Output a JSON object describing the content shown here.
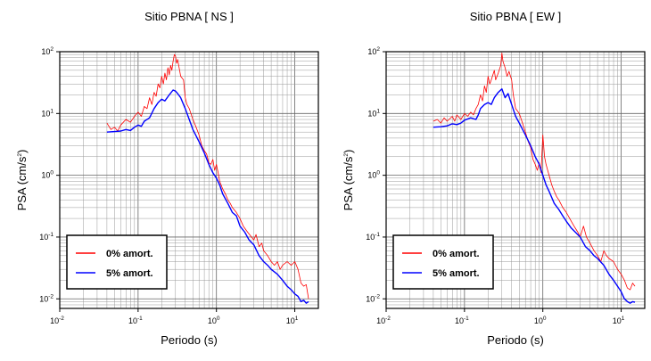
{
  "chart_data": [
    {
      "type": "line",
      "title": "Sitio PBNA [ NS ]",
      "xlabel": "Periodo (s)",
      "ylabel": "PSA (cm/s",
      "ylabel_sup": "2",
      "ylabel_end": ")",
      "xscale": "log",
      "yscale": "log",
      "xlim": [
        0.01,
        20
      ],
      "ylim": [
        0.007,
        100
      ],
      "grid": true,
      "legend_position": "bottom-left",
      "x_ticks": [
        {
          "base": "10",
          "exp": "-2"
        },
        {
          "base": "10",
          "exp": "-1"
        },
        {
          "base": "10",
          "exp": "0"
        },
        {
          "base": "10",
          "exp": "1"
        }
      ],
      "y_ticks": [
        {
          "base": "10",
          "exp": "2"
        },
        {
          "base": "10",
          "exp": "1"
        },
        {
          "base": "10",
          "exp": "0"
        },
        {
          "base": "10",
          "exp": "-1"
        },
        {
          "base": "10",
          "exp": "-2"
        }
      ],
      "series": [
        {
          "name": "0% amort.",
          "color": "#ff0000",
          "points": [
            [
              0.04,
              7
            ],
            [
              0.045,
              5.5
            ],
            [
              0.05,
              6
            ],
            [
              0.055,
              5.2
            ],
            [
              0.06,
              6.5
            ],
            [
              0.07,
              8
            ],
            [
              0.08,
              7.2
            ],
            [
              0.09,
              9
            ],
            [
              0.1,
              10.5
            ],
            [
              0.11,
              9
            ],
            [
              0.12,
              13
            ],
            [
              0.13,
              12
            ],
            [
              0.14,
              18
            ],
            [
              0.15,
              14
            ],
            [
              0.16,
              22
            ],
            [
              0.17,
              19
            ],
            [
              0.18,
              30
            ],
            [
              0.19,
              26
            ],
            [
              0.2,
              40
            ],
            [
              0.21,
              30
            ],
            [
              0.22,
              45
            ],
            [
              0.23,
              35
            ],
            [
              0.24,
              55
            ],
            [
              0.25,
              42
            ],
            [
              0.26,
              60
            ],
            [
              0.27,
              50
            ],
            [
              0.28,
              70
            ],
            [
              0.29,
              90
            ],
            [
              0.3,
              85
            ],
            [
              0.31,
              65
            ],
            [
              0.32,
              75
            ],
            [
              0.33,
              60
            ],
            [
              0.35,
              40
            ],
            [
              0.38,
              35
            ],
            [
              0.4,
              18
            ],
            [
              0.42,
              14
            ],
            [
              0.45,
              12
            ],
            [
              0.5,
              8
            ],
            [
              0.55,
              6
            ],
            [
              0.6,
              4.5
            ],
            [
              0.65,
              3
            ],
            [
              0.7,
              2.5
            ],
            [
              0.75,
              2.2
            ],
            [
              0.8,
              1.6
            ],
            [
              0.85,
              1.5
            ],
            [
              0.9,
              1.8
            ],
            [
              0.95,
              1.2
            ],
            [
              1.0,
              1.5
            ],
            [
              1.05,
              1.1
            ],
            [
              1.1,
              0.8
            ],
            [
              1.2,
              0.6
            ],
            [
              1.3,
              0.5
            ],
            [
              1.4,
              0.4
            ],
            [
              1.5,
              0.35
            ],
            [
              1.6,
              0.3
            ],
            [
              1.8,
              0.25
            ],
            [
              2.0,
              0.2
            ],
            [
              2.2,
              0.15
            ],
            [
              2.5,
              0.12
            ],
            [
              2.8,
              0.1
            ],
            [
              3.0,
              0.09
            ],
            [
              3.2,
              0.11
            ],
            [
              3.5,
              0.07
            ],
            [
              3.8,
              0.08
            ],
            [
              4.0,
              0.06
            ],
            [
              4.5,
              0.05
            ],
            [
              5.0,
              0.04
            ],
            [
              5.5,
              0.035
            ],
            [
              6.0,
              0.04
            ],
            [
              6.5,
              0.03
            ],
            [
              7.0,
              0.035
            ],
            [
              8.0,
              0.04
            ],
            [
              9.0,
              0.035
            ],
            [
              10.0,
              0.04
            ],
            [
              11.0,
              0.03
            ],
            [
              12.0,
              0.018
            ],
            [
              13.0,
              0.016
            ],
            [
              14.0,
              0.017
            ],
            [
              15.0,
              0.01
            ]
          ]
        },
        {
          "name": "5% amort.",
          "color": "#0000ff",
          "points": [
            [
              0.04,
              5
            ],
            [
              0.05,
              5.1
            ],
            [
              0.06,
              5.2
            ],
            [
              0.07,
              5.5
            ],
            [
              0.08,
              5.3
            ],
            [
              0.09,
              6
            ],
            [
              0.1,
              6.5
            ],
            [
              0.11,
              6.2
            ],
            [
              0.12,
              7.5
            ],
            [
              0.14,
              8.5
            ],
            [
              0.16,
              12
            ],
            [
              0.18,
              15
            ],
            [
              0.2,
              17
            ],
            [
              0.22,
              16
            ],
            [
              0.25,
              20
            ],
            [
              0.28,
              24
            ],
            [
              0.3,
              23
            ],
            [
              0.32,
              21
            ],
            [
              0.35,
              18
            ],
            [
              0.4,
              12
            ],
            [
              0.45,
              8
            ],
            [
              0.5,
              5.5
            ],
            [
              0.6,
              3.5
            ],
            [
              0.7,
              2.3
            ],
            [
              0.8,
              1.5
            ],
            [
              0.9,
              1.1
            ],
            [
              1.0,
              0.9
            ],
            [
              1.1,
              0.7
            ],
            [
              1.2,
              0.5
            ],
            [
              1.4,
              0.35
            ],
            [
              1.6,
              0.25
            ],
            [
              1.8,
              0.22
            ],
            [
              2.0,
              0.15
            ],
            [
              2.3,
              0.12
            ],
            [
              2.6,
              0.09
            ],
            [
              3.0,
              0.075
            ],
            [
              3.5,
              0.05
            ],
            [
              4.0,
              0.04
            ],
            [
              4.5,
              0.035
            ],
            [
              5.0,
              0.03
            ],
            [
              6.0,
              0.025
            ],
            [
              7.0,
              0.02
            ],
            [
              8.0,
              0.016
            ],
            [
              9.0,
              0.014
            ],
            [
              10.0,
              0.012
            ],
            [
              11.0,
              0.011
            ],
            [
              12.0,
              0.009
            ],
            [
              13.0,
              0.0095
            ],
            [
              14.0,
              0.0085
            ],
            [
              15.0,
              0.009
            ]
          ]
        }
      ]
    },
    {
      "type": "line",
      "title": "Sitio PBNA [ EW ]",
      "xlabel": "Periodo (s)",
      "ylabel": "PSA (cm/s",
      "ylabel_sup": "2",
      "ylabel_end": ")",
      "xscale": "log",
      "yscale": "log",
      "xlim": [
        0.01,
        20
      ],
      "ylim": [
        0.007,
        100
      ],
      "grid": true,
      "legend_position": "bottom-left",
      "x_ticks": [
        {
          "base": "10",
          "exp": "-2"
        },
        {
          "base": "10",
          "exp": "-1"
        },
        {
          "base": "10",
          "exp": "0"
        },
        {
          "base": "10",
          "exp": "1"
        }
      ],
      "y_ticks": [
        {
          "base": "10",
          "exp": "2"
        },
        {
          "base": "10",
          "exp": "1"
        },
        {
          "base": "10",
          "exp": "0"
        },
        {
          "base": "10",
          "exp": "-1"
        },
        {
          "base": "10",
          "exp": "-2"
        }
      ],
      "series": [
        {
          "name": "0% amort.",
          "color": "#ff0000",
          "points": [
            [
              0.04,
              7.5
            ],
            [
              0.045,
              8
            ],
            [
              0.05,
              7
            ],
            [
              0.055,
              8.5
            ],
            [
              0.06,
              7.5
            ],
            [
              0.07,
              9
            ],
            [
              0.075,
              7.5
            ],
            [
              0.08,
              9.5
            ],
            [
              0.09,
              8
            ],
            [
              0.1,
              10
            ],
            [
              0.11,
              9
            ],
            [
              0.12,
              10.5
            ],
            [
              0.13,
              9.5
            ],
            [
              0.14,
              12
            ],
            [
              0.15,
              14
            ],
            [
              0.16,
              20
            ],
            [
              0.17,
              16
            ],
            [
              0.18,
              28
            ],
            [
              0.19,
              22
            ],
            [
              0.2,
              40
            ],
            [
              0.21,
              30
            ],
            [
              0.22,
              35
            ],
            [
              0.24,
              50
            ],
            [
              0.25,
              35
            ],
            [
              0.27,
              45
            ],
            [
              0.29,
              60
            ],
            [
              0.3,
              95
            ],
            [
              0.31,
              70
            ],
            [
              0.33,
              55
            ],
            [
              0.35,
              40
            ],
            [
              0.37,
              48
            ],
            [
              0.4,
              35
            ],
            [
              0.42,
              20
            ],
            [
              0.45,
              12
            ],
            [
              0.5,
              10
            ],
            [
              0.55,
              7
            ],
            [
              0.6,
              5
            ],
            [
              0.65,
              3.5
            ],
            [
              0.7,
              2.8
            ],
            [
              0.75,
              1.8
            ],
            [
              0.8,
              1.5
            ],
            [
              0.85,
              1.2
            ],
            [
              0.9,
              1.6
            ],
            [
              0.95,
              1.1
            ],
            [
              1.0,
              4.5
            ],
            [
              1.05,
              2
            ],
            [
              1.1,
              1.5
            ],
            [
              1.2,
              1
            ],
            [
              1.3,
              0.7
            ],
            [
              1.4,
              0.55
            ],
            [
              1.5,
              0.45
            ],
            [
              1.6,
              0.4
            ],
            [
              1.8,
              0.3
            ],
            [
              2.0,
              0.25
            ],
            [
              2.2,
              0.2
            ],
            [
              2.5,
              0.15
            ],
            [
              2.8,
              0.12
            ],
            [
              3.0,
              0.1
            ],
            [
              3.3,
              0.15
            ],
            [
              3.6,
              0.1
            ],
            [
              4.0,
              0.08
            ],
            [
              4.5,
              0.06
            ],
            [
              5.0,
              0.05
            ],
            [
              5.5,
              0.04
            ],
            [
              6.0,
              0.06
            ],
            [
              6.5,
              0.05
            ],
            [
              7.0,
              0.045
            ],
            [
              8.0,
              0.04
            ],
            [
              9.0,
              0.03
            ],
            [
              10.0,
              0.025
            ],
            [
              11.0,
              0.02
            ],
            [
              12.0,
              0.015
            ],
            [
              13.0,
              0.014
            ],
            [
              14.0,
              0.018
            ],
            [
              15.0,
              0.016
            ]
          ]
        },
        {
          "name": "5% amort.",
          "color": "#0000ff",
          "points": [
            [
              0.04,
              6
            ],
            [
              0.05,
              6.1
            ],
            [
              0.06,
              6.3
            ],
            [
              0.07,
              6.8
            ],
            [
              0.08,
              6.6
            ],
            [
              0.09,
              7
            ],
            [
              0.1,
              7.8
            ],
            [
              0.12,
              8.5
            ],
            [
              0.14,
              8
            ],
            [
              0.15,
              9.5
            ],
            [
              0.16,
              12
            ],
            [
              0.18,
              14
            ],
            [
              0.2,
              15
            ],
            [
              0.22,
              14
            ],
            [
              0.24,
              18
            ],
            [
              0.27,
              22
            ],
            [
              0.3,
              25
            ],
            [
              0.33,
              18
            ],
            [
              0.36,
              21
            ],
            [
              0.4,
              14
            ],
            [
              0.45,
              9
            ],
            [
              0.5,
              7
            ],
            [
              0.6,
              4.5
            ],
            [
              0.7,
              3
            ],
            [
              0.8,
              2
            ],
            [
              0.9,
              1.5
            ],
            [
              1.0,
              1
            ],
            [
              1.1,
              0.7
            ],
            [
              1.2,
              0.55
            ],
            [
              1.4,
              0.35
            ],
            [
              1.6,
              0.28
            ],
            [
              1.8,
              0.22
            ],
            [
              2.0,
              0.18
            ],
            [
              2.3,
              0.14
            ],
            [
              2.6,
              0.12
            ],
            [
              3.0,
              0.1
            ],
            [
              3.5,
              0.07
            ],
            [
              4.0,
              0.06
            ],
            [
              4.5,
              0.05
            ],
            [
              5.0,
              0.045
            ],
            [
              6.0,
              0.035
            ],
            [
              7.0,
              0.025
            ],
            [
              8.0,
              0.02
            ],
            [
              9.0,
              0.016
            ],
            [
              10.0,
              0.013
            ],
            [
              11.0,
              0.01
            ],
            [
              12.0,
              0.009
            ],
            [
              13.0,
              0.0085
            ],
            [
              14.0,
              0.009
            ],
            [
              15.0,
              0.0088
            ]
          ]
        }
      ]
    }
  ]
}
